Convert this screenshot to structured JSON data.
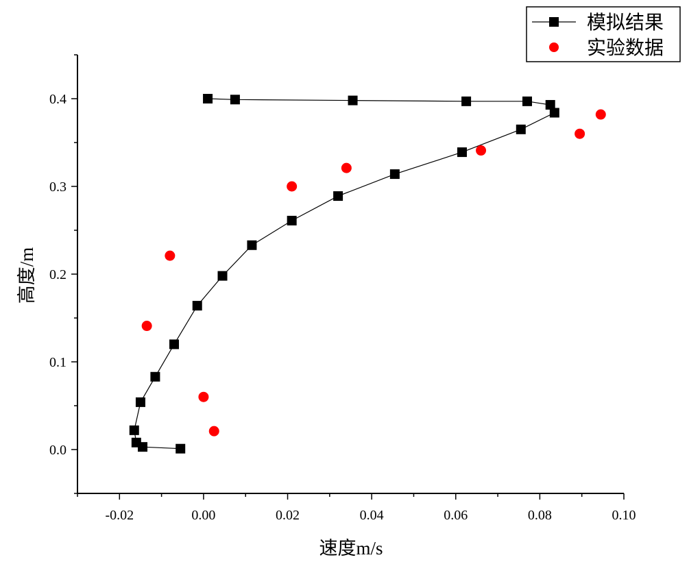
{
  "chart_data": {
    "type": "scatter",
    "xlabel": "速度m/s",
    "ylabel": "高度/m",
    "xlim": [
      -0.03,
      0.1
    ],
    "ylim": [
      -0.05,
      0.45
    ],
    "x_ticks": [
      -0.02,
      0.0,
      0.02,
      0.04,
      0.06,
      0.08,
      0.1
    ],
    "x_tick_labels": [
      "-0.02",
      "0.00",
      "0.02",
      "0.04",
      "0.06",
      "0.08",
      "0.10"
    ],
    "y_ticks": [
      0.0,
      0.1,
      0.2,
      0.3,
      0.4
    ],
    "y_tick_labels": [
      "0.0",
      "0.1",
      "0.2",
      "0.3",
      "0.4"
    ],
    "grid": false,
    "legend_position": "top-right",
    "series": [
      {
        "name": "模拟结果",
        "style": "line-square",
        "color": "#000000",
        "points": [
          [
            0.001,
            0.4
          ],
          [
            0.0075,
            0.399
          ],
          [
            0.0355,
            0.398
          ],
          [
            0.0625,
            0.397
          ],
          [
            0.077,
            0.397
          ],
          [
            0.0825,
            0.393
          ],
          [
            0.0835,
            0.384
          ],
          [
            0.0755,
            0.365
          ],
          [
            0.0615,
            0.339
          ],
          [
            0.0455,
            0.314
          ],
          [
            0.032,
            0.289
          ],
          [
            0.021,
            0.261
          ],
          [
            0.0115,
            0.233
          ],
          [
            0.0045,
            0.198
          ],
          [
            -0.0015,
            0.164
          ],
          [
            -0.007,
            0.12
          ],
          [
            -0.0115,
            0.083
          ],
          [
            -0.015,
            0.054
          ],
          [
            -0.0165,
            0.022
          ],
          [
            -0.016,
            0.008
          ],
          [
            -0.0145,
            0.003
          ],
          [
            -0.0055,
            0.001
          ]
        ]
      },
      {
        "name": "实验数据",
        "style": "circle",
        "color": "#ff0000",
        "points": [
          [
            0.0945,
            0.382
          ],
          [
            0.0895,
            0.36
          ],
          [
            0.066,
            0.341
          ],
          [
            0.034,
            0.321
          ],
          [
            0.021,
            0.3
          ],
          [
            -0.008,
            0.221
          ],
          [
            -0.0135,
            0.141
          ],
          [
            0.0,
            0.06
          ],
          [
            0.0025,
            0.021
          ]
        ]
      }
    ]
  }
}
